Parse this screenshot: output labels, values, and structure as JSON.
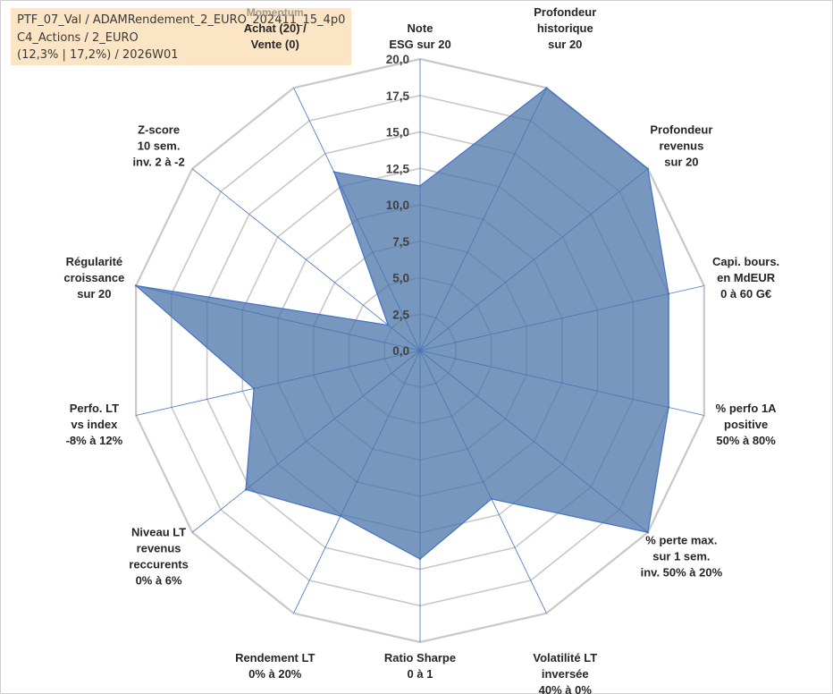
{
  "info": {
    "line1": "PTF_07_Val / ADAMRendement_2_EURO_202411_15_4p0",
    "line2": "C4_Actions / 2_EURO",
    "line3": "(12,3% | 17,2%) / 2026W01"
  },
  "chart_data": {
    "type": "radar",
    "title": "",
    "rmin": 0,
    "rmax": 20,
    "tick_step": 2.5,
    "tick_labels": [
      "0,0",
      "2,5",
      "5,0",
      "7,5",
      "10,0",
      "12,5",
      "15,0",
      "17,5",
      "20,0"
    ],
    "axes": [
      {
        "label": [
          "Note",
          "ESG sur 20"
        ],
        "value": 11.3
      },
      {
        "label": [
          "Profondeur",
          "historique",
          "sur 20"
        ],
        "value": 20.0
      },
      {
        "label": [
          "Profondeur",
          "revenus",
          "sur 20"
        ],
        "value": 20.0
      },
      {
        "label": [
          "Capi. bours.",
          "en MdEUR",
          "0 à 60 G€"
        ],
        "value": 17.5
      },
      {
        "label": [
          "% perfo 1A",
          "positive",
          "50% à 80%"
        ],
        "value": 17.5
      },
      {
        "label": [
          "% perte max.",
          "sur 1 sem.",
          "inv. 50% à 20%"
        ],
        "value": 20.0
      },
      {
        "label": [
          "Volatilité LT",
          "inversée",
          "40% à 0%"
        ],
        "value": 11.3
      },
      {
        "label": [
          "Ratio Sharpe",
          "0 à 1"
        ],
        "value": 14.3
      },
      {
        "label": [
          "Rendement LT",
          "0% à 20%"
        ],
        "value": 12.6
      },
      {
        "label": [
          "Niveau LT",
          "revenus",
          "reccurents",
          "0% à 6%"
        ],
        "value": 15.3
      },
      {
        "label": [
          "Perfo. LT",
          "vs index",
          "-8% à 12%"
        ],
        "value": 11.7
      },
      {
        "label": [
          "Régularité",
          "croissance",
          "sur 20"
        ],
        "value": 20.0
      },
      {
        "label": [
          "Z-score",
          "10 sem.",
          "inv. 2 à -2"
        ],
        "value": 2.8
      },
      {
        "label": [
          "Achat (20) /",
          "Vente (0)"
        ],
        "value": 13.6,
        "super_label": "Momentum"
      }
    ],
    "series": [
      {
        "name": "",
        "values": [
          11.3,
          20.0,
          20.0,
          17.5,
          17.5,
          20.0,
          11.3,
          14.3,
          12.6,
          15.3,
          11.7,
          20.0,
          2.8,
          13.6
        ]
      }
    ],
    "colors": {
      "fill": "#4a74a8",
      "fill_opacity": 0.75,
      "stroke": "#4472c4",
      "grid": "#c8c8c8",
      "spoke": "#4472c4"
    },
    "legend": "none",
    "grid": true
  }
}
